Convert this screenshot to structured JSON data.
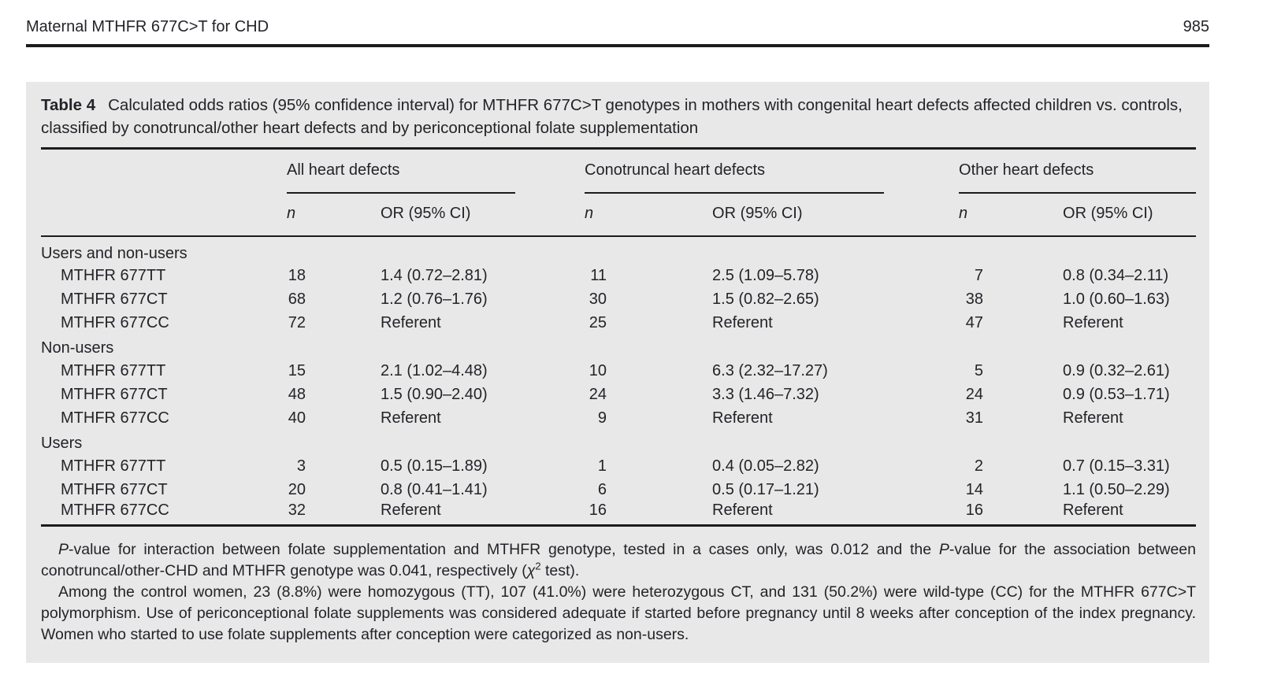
{
  "page": {
    "running_head": "Maternal MTHFR 677C>T for CHD",
    "page_number": "985"
  },
  "table": {
    "label": "Table 4",
    "caption": "Calculated odds ratios (95% confidence interval) for MTHFR 677C>T genotypes in mothers with congenital heart defects affected children vs. controls, classified by conotruncal/other heart defects and by periconceptional folate supplementation",
    "groups": [
      {
        "label": "All heart defects"
      },
      {
        "label": "Conotruncal heart defects"
      },
      {
        "label": "Other heart defects"
      }
    ],
    "subheaders": {
      "n": "n",
      "or": "OR (95% CI)"
    },
    "sections": [
      {
        "label": "Users and non-users",
        "rows": [
          {
            "label": "MTHFR 677TT",
            "all_n": "18",
            "all_or": "1.4 (0.72–2.81)",
            "cono_n": "11",
            "cono_or": "2.5 (1.09–5.78)",
            "other_n": "7",
            "other_or": "0.8 (0.34–2.11)"
          },
          {
            "label": "MTHFR 677CT",
            "all_n": "68",
            "all_or": "1.2 (0.76–1.76)",
            "cono_n": "30",
            "cono_or": "1.5 (0.82–2.65)",
            "other_n": "38",
            "other_or": "1.0 (0.60–1.63)"
          },
          {
            "label": "MTHFR 677CC",
            "all_n": "72",
            "all_or": "Referent",
            "cono_n": "25",
            "cono_or": "Referent",
            "other_n": "47",
            "other_or": "Referent"
          }
        ]
      },
      {
        "label": "Non-users",
        "rows": [
          {
            "label": "MTHFR 677TT",
            "all_n": "15",
            "all_or": "2.1 (1.02–4.48)",
            "cono_n": "10",
            "cono_or": "6.3 (2.32–17.27)",
            "other_n": "5",
            "other_or": "0.9 (0.32–2.61)"
          },
          {
            "label": "MTHFR 677CT",
            "all_n": "48",
            "all_or": "1.5 (0.90–2.40)",
            "cono_n": "24",
            "cono_or": "3.3 (1.46–7.32)",
            "other_n": "24",
            "other_or": "0.9 (0.53–1.71)"
          },
          {
            "label": "MTHFR 677CC",
            "all_n": "40",
            "all_or": "Referent",
            "cono_n": "9",
            "cono_or": "Referent",
            "other_n": "31",
            "other_or": "Referent"
          }
        ]
      },
      {
        "label": "Users",
        "rows": [
          {
            "label": "MTHFR 677TT",
            "all_n": "3",
            "all_or": "0.5 (0.15–1.89)",
            "cono_n": "1",
            "cono_or": "0.4 (0.05–2.82)",
            "other_n": "2",
            "other_or": "0.7 (0.15–3.31)"
          },
          {
            "label": "MTHFR 677CT",
            "all_n": "20",
            "all_or": "0.8 (0.41–1.41)",
            "cono_n": "6",
            "cono_or": "0.5 (0.17–1.21)",
            "other_n": "14",
            "other_or": "1.1 (0.50–2.29)"
          },
          {
            "label": "MTHFR 677CC",
            "all_n": "32",
            "all_or": "Referent",
            "cono_n": "16",
            "cono_or": "Referent",
            "other_n": "16",
            "other_or": "Referent"
          }
        ]
      }
    ],
    "footnotes_html": [
      "<i>P</i>-value for interaction between folate supplementation and MTHFR genotype, tested in a cases only, was 0.012 and the <i>P</i>-value for the association between conotruncal/other-CHD and MTHFR genotype was 0.041, respectively (<i>χ</i><sup>2</sup> test).",
      "Among the control women, 23 (8.8%) were homozygous (TT), 107 (41.0%) were heterozygous CT, and 131 (50.2%) were wild-type (CC) for the MTHFR 677C>T polymorphism. Use of periconceptional folate supplements was considered adequate if started before pregnancy until 8 weeks after conception of the index pregnancy. Women who started to use folate supplements after conception were categorized as non-users."
    ]
  },
  "colors": {
    "panel_bg": "#e8e8e8",
    "rule": "#1c1c1f",
    "text": "#232329"
  }
}
